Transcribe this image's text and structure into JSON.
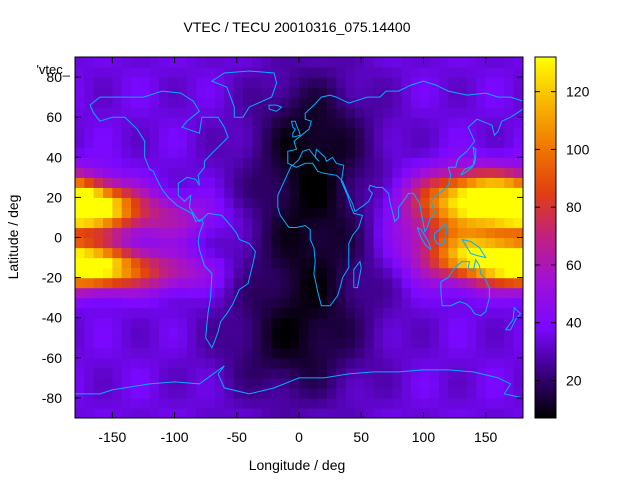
{
  "chart_data": {
    "type": "heatmap",
    "title": "VTEC / TECU 20010316_075.14400",
    "xlabel": "Longitude / deg",
    "ylabel": "Latitude / deg",
    "xlim": [
      -180,
      180
    ],
    "ylim": [
      -90,
      90
    ],
    "xticks": [
      -150,
      -100,
      -50,
      0,
      50,
      100,
      150
    ],
    "yticks": [
      -80,
      -60,
      -40,
      -20,
      0,
      20,
      40,
      60,
      80
    ],
    "colorbar": {
      "range": [
        7,
        132
      ],
      "ticks": [
        20,
        40,
        60,
        80,
        100,
        120
      ],
      "palette": [
        "#000000",
        "#3a0080",
        "#7a08ff",
        "#a010d8",
        "#c02080",
        "#e04010",
        "#f07800",
        "#f8b800",
        "#ffff00"
      ]
    },
    "series_label": "'vtec_",
    "grid_lon_step": 7.5,
    "grid_lat_step": 5,
    "features": [
      {
        "name": "equatorial-anomaly-pacific-north",
        "lon": -170,
        "lat": 15,
        "sigma_lon": 25,
        "sigma_lat": 7,
        "value": 95
      },
      {
        "name": "equatorial-anomaly-pacific-south",
        "lon": -165,
        "lat": -15,
        "sigma_lon": 25,
        "sigma_lat": 7,
        "value": 90
      },
      {
        "name": "equatorial-band-americas-north",
        "lon": -110,
        "lat": 10,
        "sigma_lon": 35,
        "sigma_lat": 8,
        "value": 25
      },
      {
        "name": "equatorial-band-americas-south",
        "lon": -110,
        "lat": -17,
        "sigma_lon": 30,
        "sigma_lat": 7,
        "value": 30
      },
      {
        "name": "equatorial-anomaly-asia-north",
        "lon": 150,
        "lat": 20,
        "sigma_lon": 35,
        "sigma_lat": 9,
        "value": 90
      },
      {
        "name": "equatorial-anomaly-asia-south",
        "lon": 150,
        "lat": -10,
        "sigma_lon": 30,
        "sigma_lat": 8,
        "value": 80
      },
      {
        "name": "equatorial-band-asia-center",
        "lon": 125,
        "lat": 5,
        "sigma_lon": 35,
        "sigma_lat": 15,
        "value": 35
      },
      {
        "name": "night-trough-africa",
        "lon": 10,
        "lat": 5,
        "sigma_lon": 40,
        "sigma_lat": 45,
        "value": -25
      },
      {
        "name": "night-trough-south-atlantic",
        "lon": -10,
        "lat": -55,
        "sigma_lon": 40,
        "sigma_lat": 20,
        "value": -15
      },
      {
        "name": "night-trough-europe",
        "lon": 10,
        "lat": 55,
        "sigma_lon": 30,
        "sigma_lat": 20,
        "value": -12
      }
    ],
    "background_value": 35
  }
}
